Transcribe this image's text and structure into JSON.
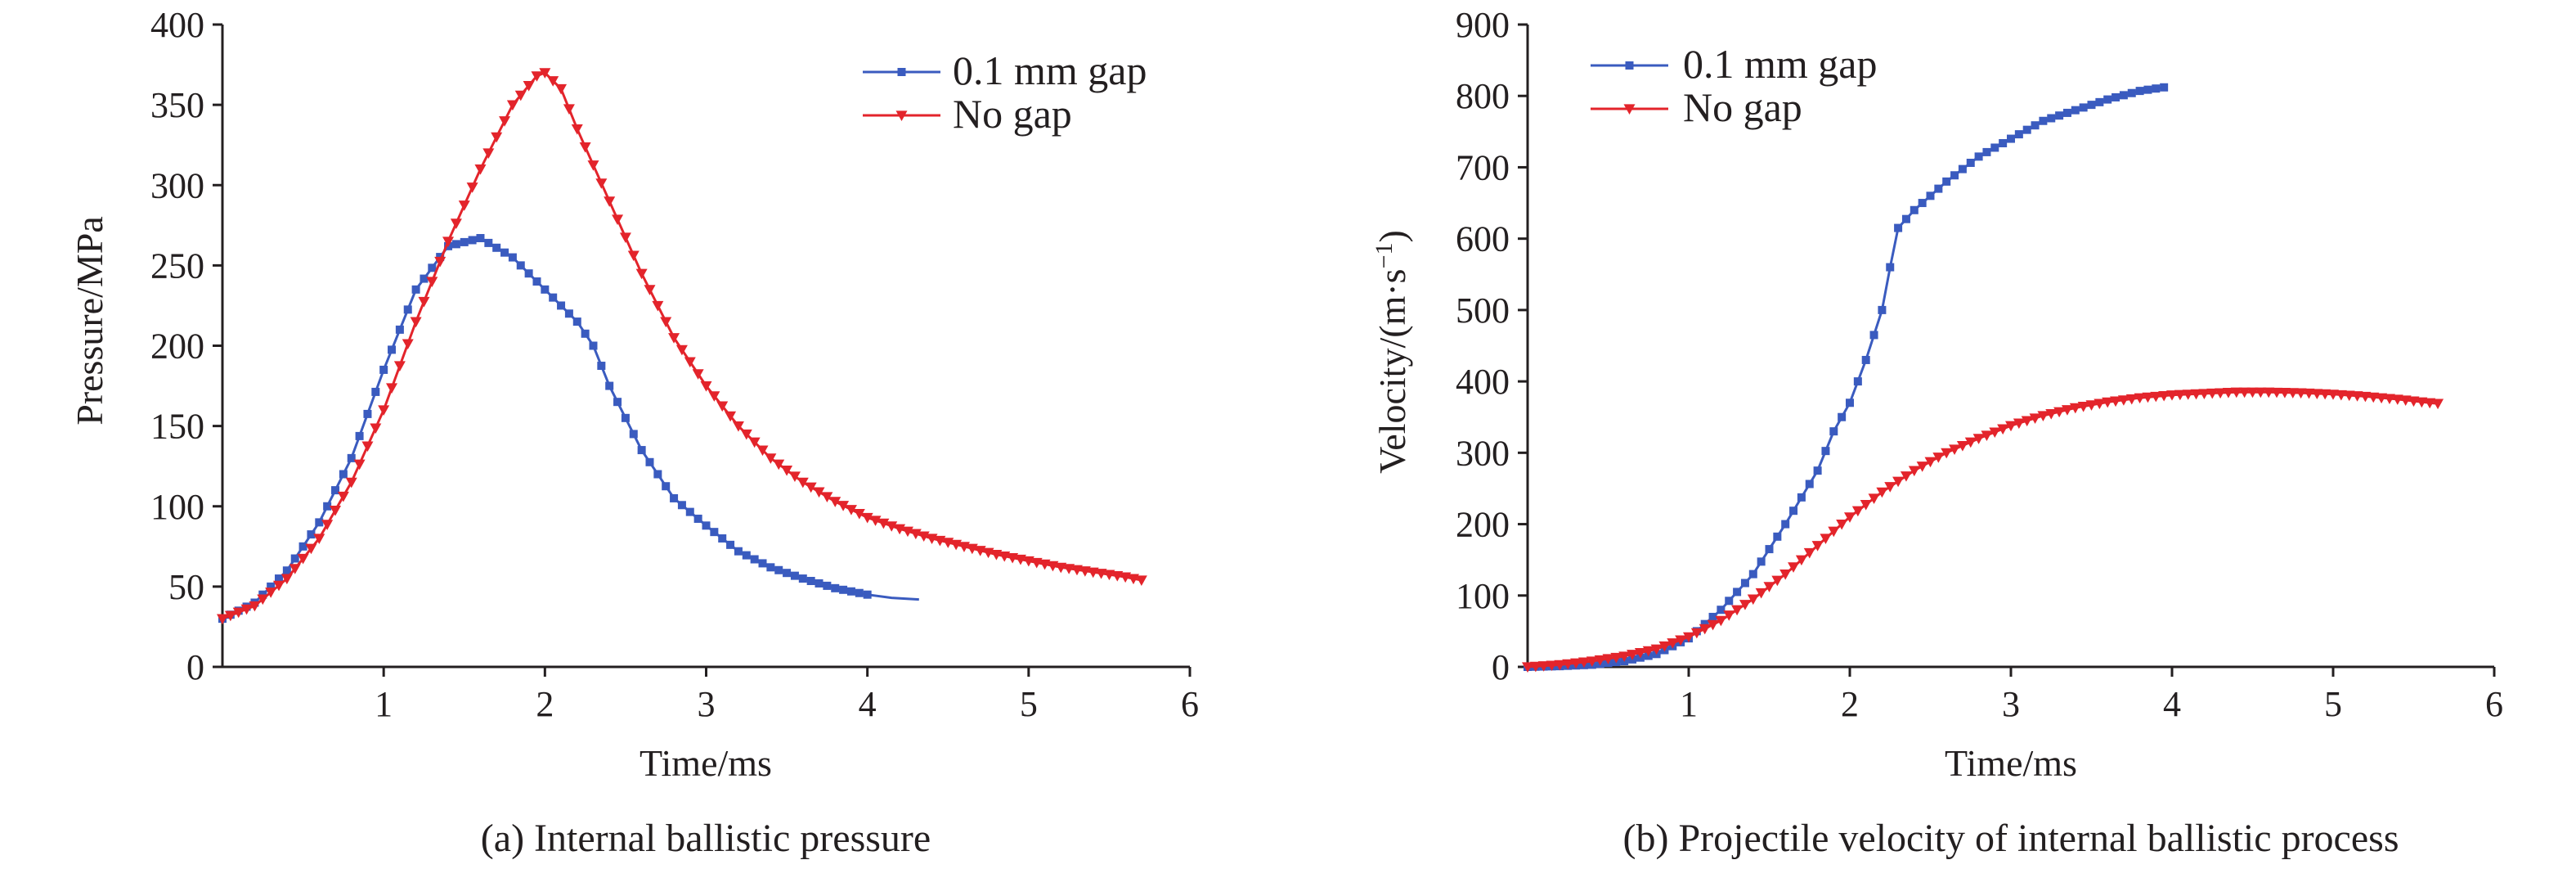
{
  "chart_data": [
    {
      "id": "pressure",
      "type": "line",
      "caption": "(a) Internal ballistic pressure",
      "xlabel": "Time/ms",
      "ylabel": "Pressure/MPa",
      "xlim": [
        0,
        6
      ],
      "ylim": [
        0,
        400
      ],
      "xticks": [
        1,
        2,
        3,
        4,
        5,
        6
      ],
      "yticks": [
        0,
        50,
        100,
        150,
        200,
        250,
        300,
        350,
        400
      ],
      "legend_position": "top-right",
      "series": [
        {
          "name": "0.1 mm gap",
          "color": "#3a5bbf",
          "marker": "square",
          "marker_until": 4.0,
          "points": [
            [
              0.0,
              30
            ],
            [
              0.2,
              40
            ],
            [
              0.4,
              60
            ],
            [
              0.6,
              90
            ],
            [
              0.8,
              130
            ],
            [
              1.0,
              185
            ],
            [
              1.2,
              235
            ],
            [
              1.4,
              262
            ],
            [
              1.6,
              267
            ],
            [
              1.8,
              255
            ],
            [
              2.0,
              235
            ],
            [
              2.2,
              215
            ],
            [
              2.3,
              200
            ],
            [
              2.4,
              175
            ],
            [
              2.6,
              135
            ],
            [
              2.8,
              105
            ],
            [
              3.0,
              88
            ],
            [
              3.2,
              72
            ],
            [
              3.4,
              62
            ],
            [
              3.6,
              55
            ],
            [
              3.8,
              49
            ],
            [
              4.0,
              45
            ],
            [
              4.15,
              43
            ],
            [
              4.32,
              42
            ]
          ]
        },
        {
          "name": "No gap",
          "color": "#e3242b",
          "marker": "triangle-down",
          "marker_until": 5.7,
          "points": [
            [
              0.0,
              30
            ],
            [
              0.2,
              38
            ],
            [
              0.4,
              55
            ],
            [
              0.6,
              80
            ],
            [
              0.8,
              115
            ],
            [
              1.0,
              160
            ],
            [
              1.2,
              215
            ],
            [
              1.4,
              265
            ],
            [
              1.6,
              310
            ],
            [
              1.8,
              350
            ],
            [
              1.95,
              368
            ],
            [
              2.0,
              370
            ],
            [
              2.1,
              360
            ],
            [
              2.2,
              335
            ],
            [
              2.4,
              290
            ],
            [
              2.6,
              245
            ],
            [
              2.8,
              205
            ],
            [
              3.0,
              175
            ],
            [
              3.2,
              150
            ],
            [
              3.4,
              130
            ],
            [
              3.6,
              115
            ],
            [
              3.8,
              103
            ],
            [
              4.0,
              93
            ],
            [
              4.2,
              86
            ],
            [
              4.4,
              80
            ],
            [
              4.6,
              75
            ],
            [
              4.8,
              70
            ],
            [
              5.0,
              66
            ],
            [
              5.2,
              62
            ],
            [
              5.4,
              59
            ],
            [
              5.6,
              56
            ],
            [
              5.7,
              54
            ]
          ]
        }
      ]
    },
    {
      "id": "velocity",
      "type": "line",
      "caption": "(b) Projectile velocity of internal ballistic process",
      "xlabel": "Time/ms",
      "ylabel_main": "Velocity/(m·s",
      "ylabel_sup": "−1",
      "ylabel_close": ")",
      "xlim": [
        0,
        6
      ],
      "ylim": [
        0,
        900
      ],
      "xticks": [
        1,
        2,
        3,
        4,
        5,
        6
      ],
      "yticks": [
        0,
        100,
        200,
        300,
        400,
        500,
        600,
        700,
        800,
        900
      ],
      "legend_position": "top-left",
      "series": [
        {
          "name": "0.1 mm gap",
          "color": "#3a5bbf",
          "marker": "square",
          "marker_until": 3.95,
          "points": [
            [
              0.0,
              0
            ],
            [
              0.2,
              1
            ],
            [
              0.4,
              3
            ],
            [
              0.6,
              8
            ],
            [
              0.8,
              18
            ],
            [
              1.0,
              40
            ],
            [
              1.2,
              80
            ],
            [
              1.4,
              130
            ],
            [
              1.6,
              200
            ],
            [
              1.8,
              275
            ],
            [
              1.9,
              330
            ],
            [
              2.0,
              370
            ],
            [
              2.1,
              430
            ],
            [
              2.2,
              500
            ],
            [
              2.25,
              560
            ],
            [
              2.3,
              615
            ],
            [
              2.4,
              640
            ],
            [
              2.6,
              680
            ],
            [
              2.8,
              715
            ],
            [
              3.0,
              740
            ],
            [
              3.2,
              765
            ],
            [
              3.4,
              780
            ],
            [
              3.6,
              795
            ],
            [
              3.8,
              807
            ],
            [
              3.95,
              812
            ]
          ]
        },
        {
          "name": "No gap",
          "color": "#e3242b",
          "marker": "triangle-down",
          "marker_until": 5.65,
          "points": [
            [
              0.0,
              0
            ],
            [
              0.2,
              3
            ],
            [
              0.4,
              8
            ],
            [
              0.6,
              15
            ],
            [
              0.8,
              25
            ],
            [
              1.0,
              42
            ],
            [
              1.2,
              65
            ],
            [
              1.4,
              95
            ],
            [
              1.6,
              130
            ],
            [
              1.8,
              170
            ],
            [
              2.0,
              210
            ],
            [
              2.2,
              245
            ],
            [
              2.4,
              275
            ],
            [
              2.6,
              300
            ],
            [
              2.8,
              320
            ],
            [
              3.0,
              338
            ],
            [
              3.2,
              352
            ],
            [
              3.4,
              363
            ],
            [
              3.6,
              371
            ],
            [
              3.8,
              377
            ],
            [
              4.0,
              381
            ],
            [
              4.2,
              383
            ],
            [
              4.4,
              385
            ],
            [
              4.6,
              385
            ],
            [
              4.8,
              384
            ],
            [
              5.0,
              382
            ],
            [
              5.2,
              379
            ],
            [
              5.4,
              375
            ],
            [
              5.6,
              370
            ],
            [
              5.65,
              369
            ]
          ]
        }
      ]
    }
  ]
}
